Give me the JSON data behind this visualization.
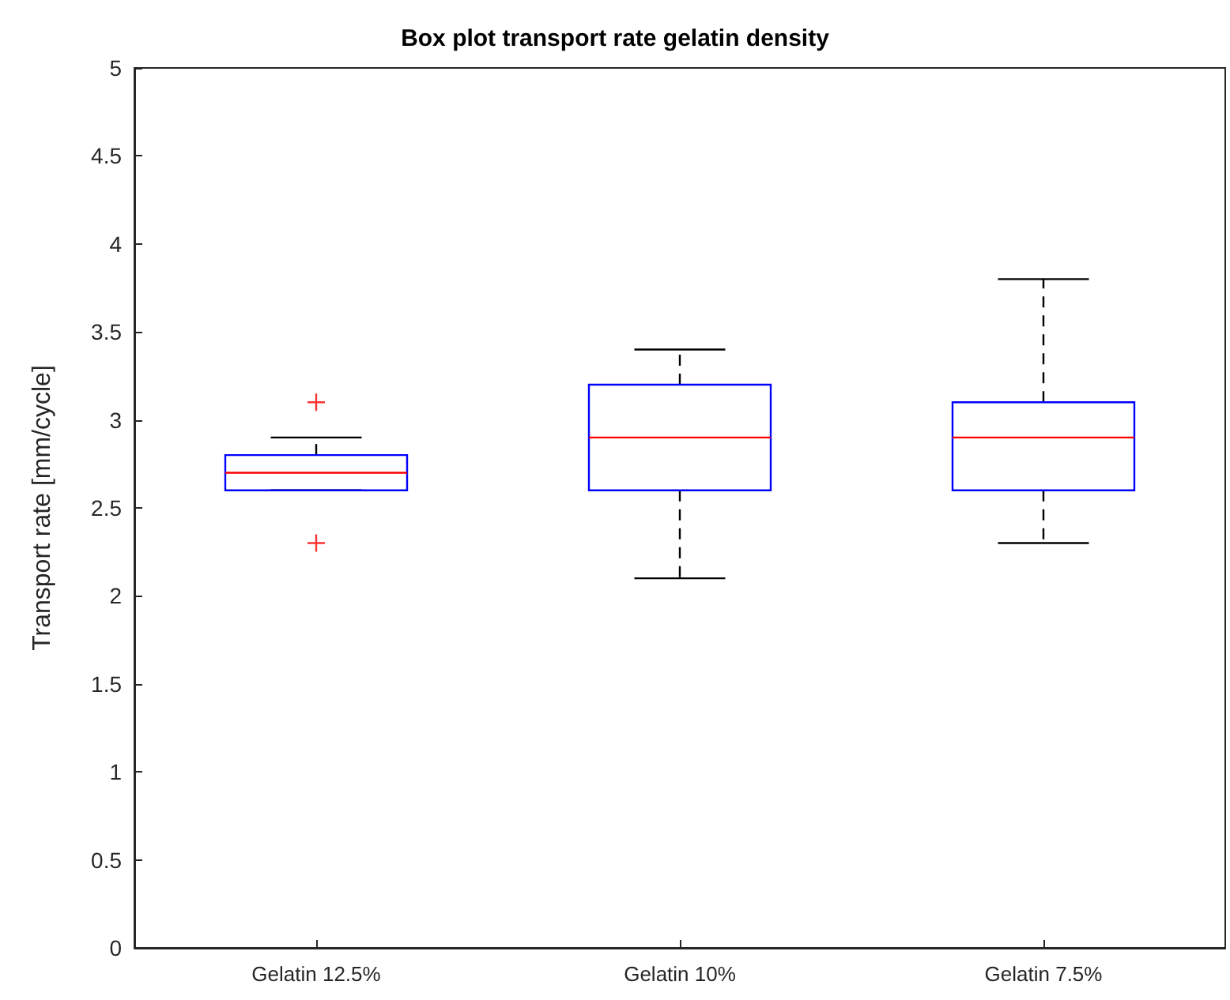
{
  "chart_data": {
    "type": "box",
    "title": "Box plot transport rate gelatin density",
    "ylabel": "Transport rate [mm/cycle]",
    "categories": [
      "Gelatin 12.5%",
      "Gelatin 10%",
      "Gelatin 7.5%"
    ],
    "color": "#0000ff",
    "boxes": [
      {
        "low": 2.6,
        "q1": 2.6,
        "median": 2.7,
        "q3": 2.8,
        "high": 2.9,
        "outliers": [
          3.1,
          2.3
        ]
      },
      {
        "low": 2.1,
        "q1": 2.6,
        "median": 2.9,
        "q3": 3.2,
        "high": 3.4
      },
      {
        "low": 2.3,
        "q1": 2.6,
        "median": 2.9,
        "q3": 3.1,
        "high": 3.8
      }
    ],
    "ylim": [
      0,
      5
    ],
    "yticks": [
      0,
      0.5,
      1,
      1.5,
      2,
      2.5,
      3,
      3.5,
      4,
      4.5,
      5
    ],
    "marker": "cross",
    "grid": false
  }
}
